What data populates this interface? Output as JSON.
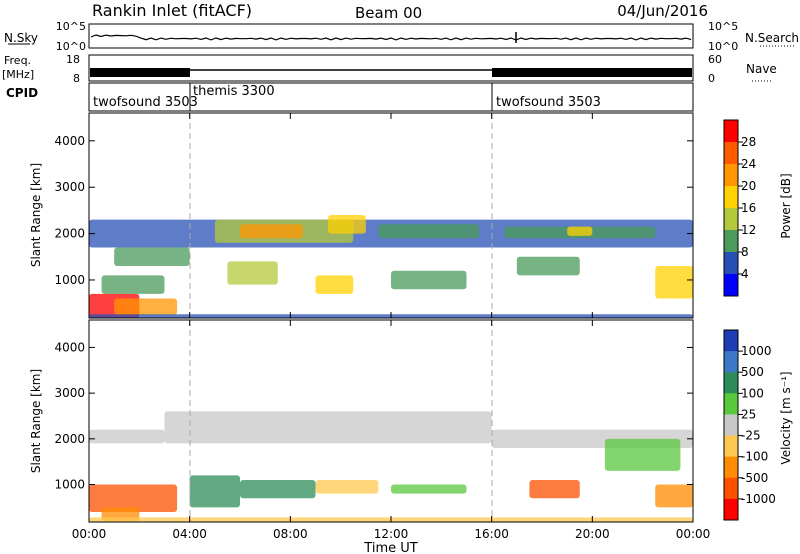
{
  "header": {
    "title": "Rankin Inlet (fitACF)",
    "beam": "Beam 00",
    "date": "04/Jun/2016"
  },
  "chart_data": [
    {
      "type": "line",
      "panel": "noise",
      "ylabel_left": "N.Sky",
      "ylabel_right": "N.Search",
      "left_ticks": [
        "10^5",
        "10^0"
      ],
      "right_ticks": [
        "10^5",
        "10^0"
      ],
      "x_range": [
        0,
        24
      ]
    },
    {
      "type": "line",
      "panel": "frequency",
      "ylabel_left": "Freq. [MHz]",
      "ylabel_right": "Nave",
      "left_ticks": [
        "18",
        "8"
      ],
      "right_ticks": [
        "60",
        "0"
      ],
      "x_range": [
        0,
        24
      ]
    },
    {
      "type": "table",
      "panel": "cpid",
      "label": "CPID",
      "segments": [
        {
          "name": "twofsound 3503",
          "start": 0,
          "end": 4
        },
        {
          "name": "themis 3300",
          "start": 4,
          "end": 16
        },
        {
          "name": "twofsound 3503",
          "start": 16,
          "end": 24
        }
      ]
    },
    {
      "type": "heatmap",
      "panel": "power",
      "ylabel": "Slant Range [km]",
      "y_ticks": [
        "4000",
        "3000",
        "2000",
        "1000"
      ],
      "y_range": [
        180,
        4600
      ],
      "colorbar_label": "Power [dB]",
      "colorbar_ticks": [
        "28",
        "24",
        "20",
        "16",
        "12",
        "8",
        "4"
      ],
      "colorbar_colors": [
        "#ff0000",
        "#ff5a00",
        "#ff9600",
        "#ffd200",
        "#b4c83c",
        "#4b9b5a",
        "#2850b4",
        "#0000ff"
      ],
      "y_values_km": [
        4000,
        3000,
        2000,
        1000
      ]
    },
    {
      "type": "heatmap",
      "panel": "velocity",
      "ylabel": "Slant Range [km]",
      "y_ticks": [
        "4000",
        "3000",
        "2000",
        "1000"
      ],
      "y_range": [
        180,
        4600
      ],
      "colorbar_label": "Velocity [m s⁻¹]",
      "colorbar_ticks": [
        "1000",
        "500",
        "100",
        "25",
        "-25",
        "-100",
        "-500",
        "-1000"
      ],
      "colorbar_colors": [
        "#1e3cb4",
        "#3c78c8",
        "#2d8c5a",
        "#5ac83c",
        "#c8c8c8",
        "#ffc850",
        "#ff8c00",
        "#ff5000",
        "#ff0000"
      ],
      "x_ticks": [
        "00:00",
        "04:00",
        "08:00",
        "12:00",
        "16:00",
        "20:00",
        "00:00"
      ],
      "xlabel": "Time UT"
    }
  ]
}
